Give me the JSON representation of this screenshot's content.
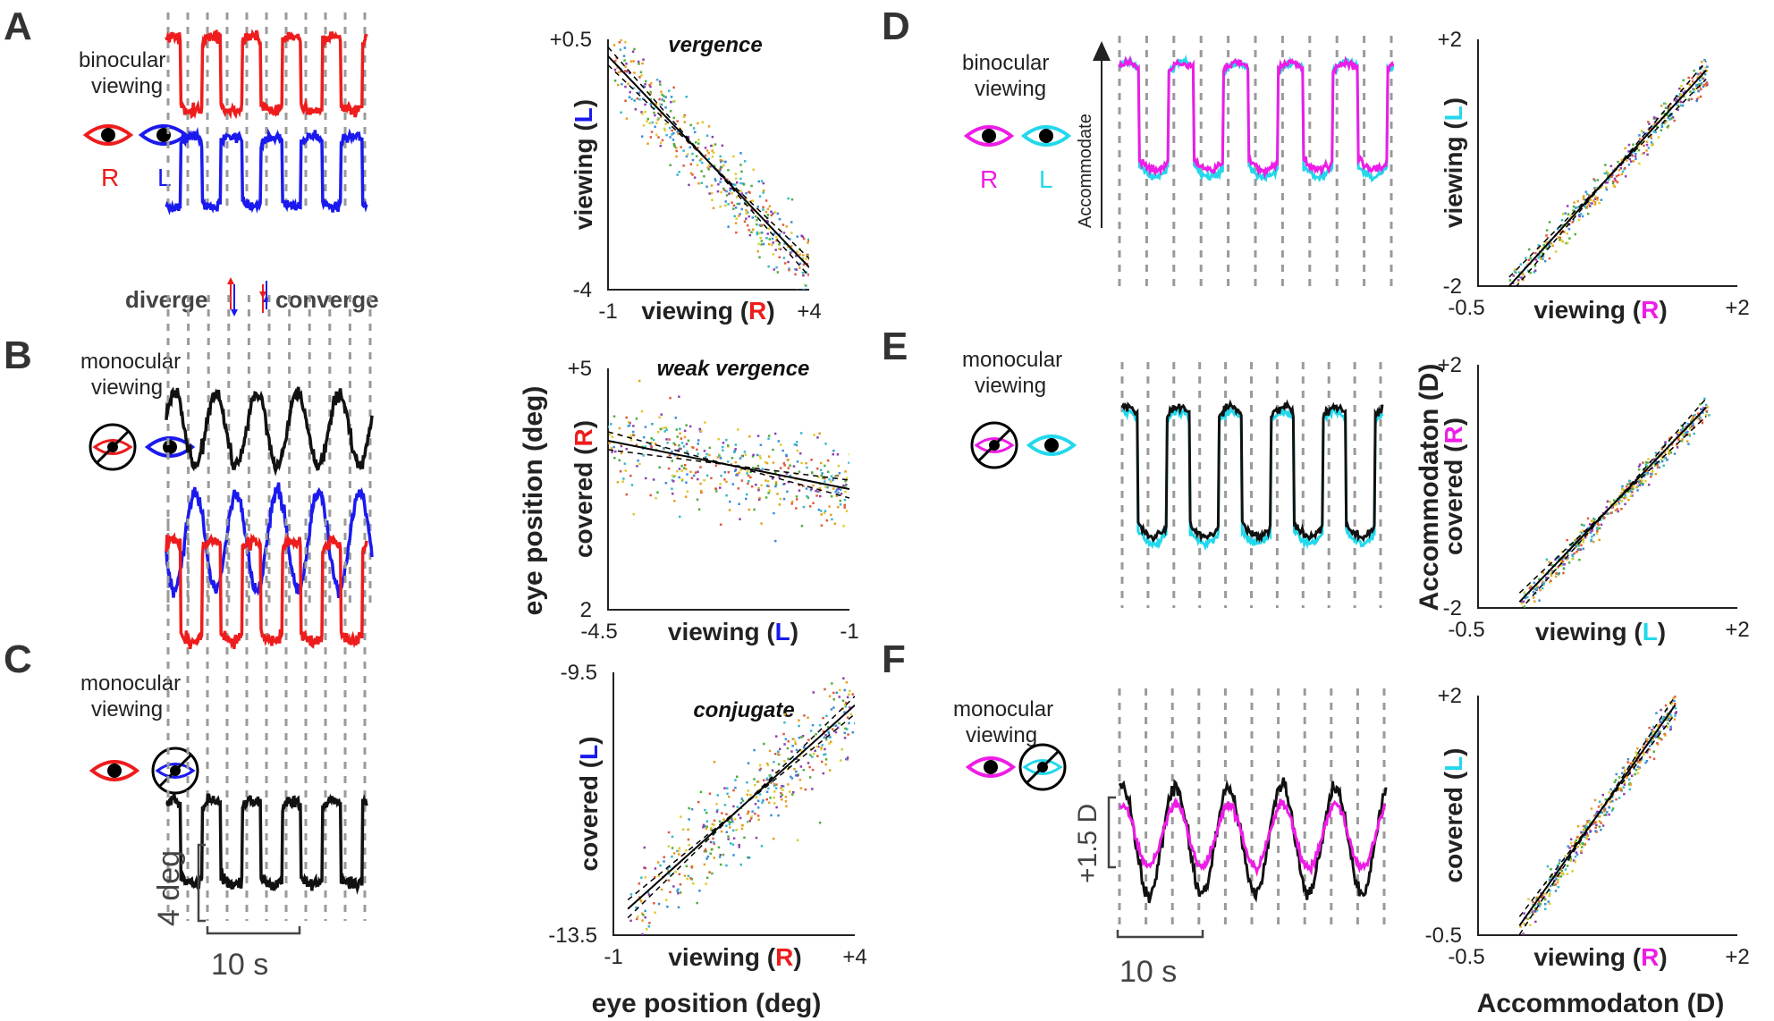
{
  "colors": {
    "right_eye_A": "#ee1c1c",
    "left_eye_A": "#1a1aee",
    "right_eye_D": "#ee1ce6",
    "left_eye_D": "#22d8ec",
    "covered": "#111111",
    "grid": "#999999"
  },
  "panels": {
    "A": {
      "letter": "A",
      "cond1": "binocular",
      "cond2": "viewing",
      "eye_r": "R",
      "eye_l": "L",
      "diverge": "diverge",
      "converge": "converge"
    },
    "B": {
      "letter": "B",
      "cond1": "monocular",
      "cond2": "viewing"
    },
    "C": {
      "letter": "C",
      "cond1": "monocular",
      "cond2": "viewing",
      "scale_y": "4 deg",
      "scale_x": "10 s"
    },
    "D": {
      "letter": "D",
      "cond1": "binocular",
      "cond2": "viewing",
      "eye_r": "R",
      "eye_l": "L",
      "accommodate": "Accommodate"
    },
    "E": {
      "letter": "E",
      "cond1": "monocular",
      "cond2": "viewing"
    },
    "F": {
      "letter": "F",
      "cond1": "monocular",
      "cond2": "viewing",
      "scale_y": "+1.5 D",
      "scale_x": "10 s"
    }
  },
  "shared_labels": {
    "eye_position": "eye position (deg)",
    "accommodation_y": "Accommodaton (D)",
    "accommodation_x": "Accommodaton (D)"
  },
  "chart_data": [
    {
      "id": "A-scatter",
      "type": "scatter",
      "title": "vergence",
      "xlabel": {
        "prefix": "viewing (",
        "eye": "R",
        "suffix": ")"
      },
      "ylabel": {
        "prefix": "viewing (",
        "eye": "L",
        "suffix": ")"
      },
      "xlim": [
        -1,
        4
      ],
      "ylim": [
        -4,
        0.5
      ],
      "xticks": [
        "-1",
        "+4"
      ],
      "yticks": [
        "-4",
        "+0.5"
      ],
      "fit": {
        "x": [
          -1,
          4
        ],
        "y": [
          0.2,
          -3.6
        ]
      }
    },
    {
      "id": "B-scatter",
      "type": "scatter",
      "title": "weak vergence",
      "xlabel": {
        "prefix": "viewing (",
        "eye": "L",
        "suffix": ")"
      },
      "ylabel": {
        "prefix": "covered (",
        "eye": "R",
        "suffix": ")"
      },
      "xlim": [
        -4.5,
        -1
      ],
      "ylim": [
        2,
        5
      ],
      "xticks": [
        "-4.5",
        "-1"
      ],
      "yticks": [
        "2",
        "+5"
      ],
      "fit": {
        "x": [
          -4.5,
          -1
        ],
        "y": [
          4.1,
          3.5
        ]
      }
    },
    {
      "id": "C-scatter",
      "type": "scatter",
      "title": "conjugate",
      "xlabel": {
        "prefix": "viewing (",
        "eye": "R",
        "suffix": ")"
      },
      "ylabel": {
        "prefix": "covered (",
        "eye": "L",
        "suffix": ")"
      },
      "xlim": [
        -1,
        4
      ],
      "ylim": [
        -13.5,
        -9.5
      ],
      "xticks": [
        "-1",
        "+4"
      ],
      "yticks": [
        "-13.5",
        "-9.5"
      ],
      "fit": {
        "x": [
          -0.7,
          4
        ],
        "y": [
          -13.1,
          -10.0
        ]
      }
    },
    {
      "id": "D-scatter",
      "type": "scatter",
      "title": "",
      "xlabel": {
        "prefix": "viewing (",
        "eye": "R",
        "suffix": ")"
      },
      "ylabel": {
        "prefix": "viewing (",
        "eye": "L",
        "suffix": ")"
      },
      "xlim": [
        -0.5,
        2
      ],
      "ylim": [
        -2,
        2
      ],
      "xticks": [
        "-0.5",
        "+2"
      ],
      "yticks": [
        "-2",
        "+2"
      ],
      "fit": {
        "x": [
          -0.2,
          1.7
        ],
        "y": [
          -2.0,
          1.5
        ]
      }
    },
    {
      "id": "E-scatter",
      "type": "scatter",
      "title": "",
      "xlabel": {
        "prefix": "viewing (",
        "eye": "L",
        "suffix": ")"
      },
      "ylabel": {
        "prefix": "covered (",
        "eye": "R",
        "suffix": ")"
      },
      "xlim": [
        -0.5,
        2
      ],
      "ylim": [
        -2,
        2
      ],
      "xticks": [
        "-0.5",
        "+2"
      ],
      "yticks": [
        "-2",
        "+2"
      ],
      "fit": {
        "x": [
          -0.1,
          1.7
        ],
        "y": [
          -1.9,
          1.3
        ]
      }
    },
    {
      "id": "F-scatter",
      "type": "scatter",
      "title": "",
      "xlabel": {
        "prefix": "viewing (",
        "eye": "R",
        "suffix": ")"
      },
      "ylabel": {
        "prefix": "covered (",
        "eye": "L",
        "suffix": ")"
      },
      "xlim": [
        -0.5,
        2
      ],
      "ylim": [
        -0.5,
        2
      ],
      "xticks": [
        "-0.5",
        "+2"
      ],
      "yticks": [
        "-0.5",
        "+2"
      ],
      "fit": {
        "x": [
          -0.1,
          1.4
        ],
        "y": [
          -0.4,
          1.9
        ]
      }
    }
  ]
}
